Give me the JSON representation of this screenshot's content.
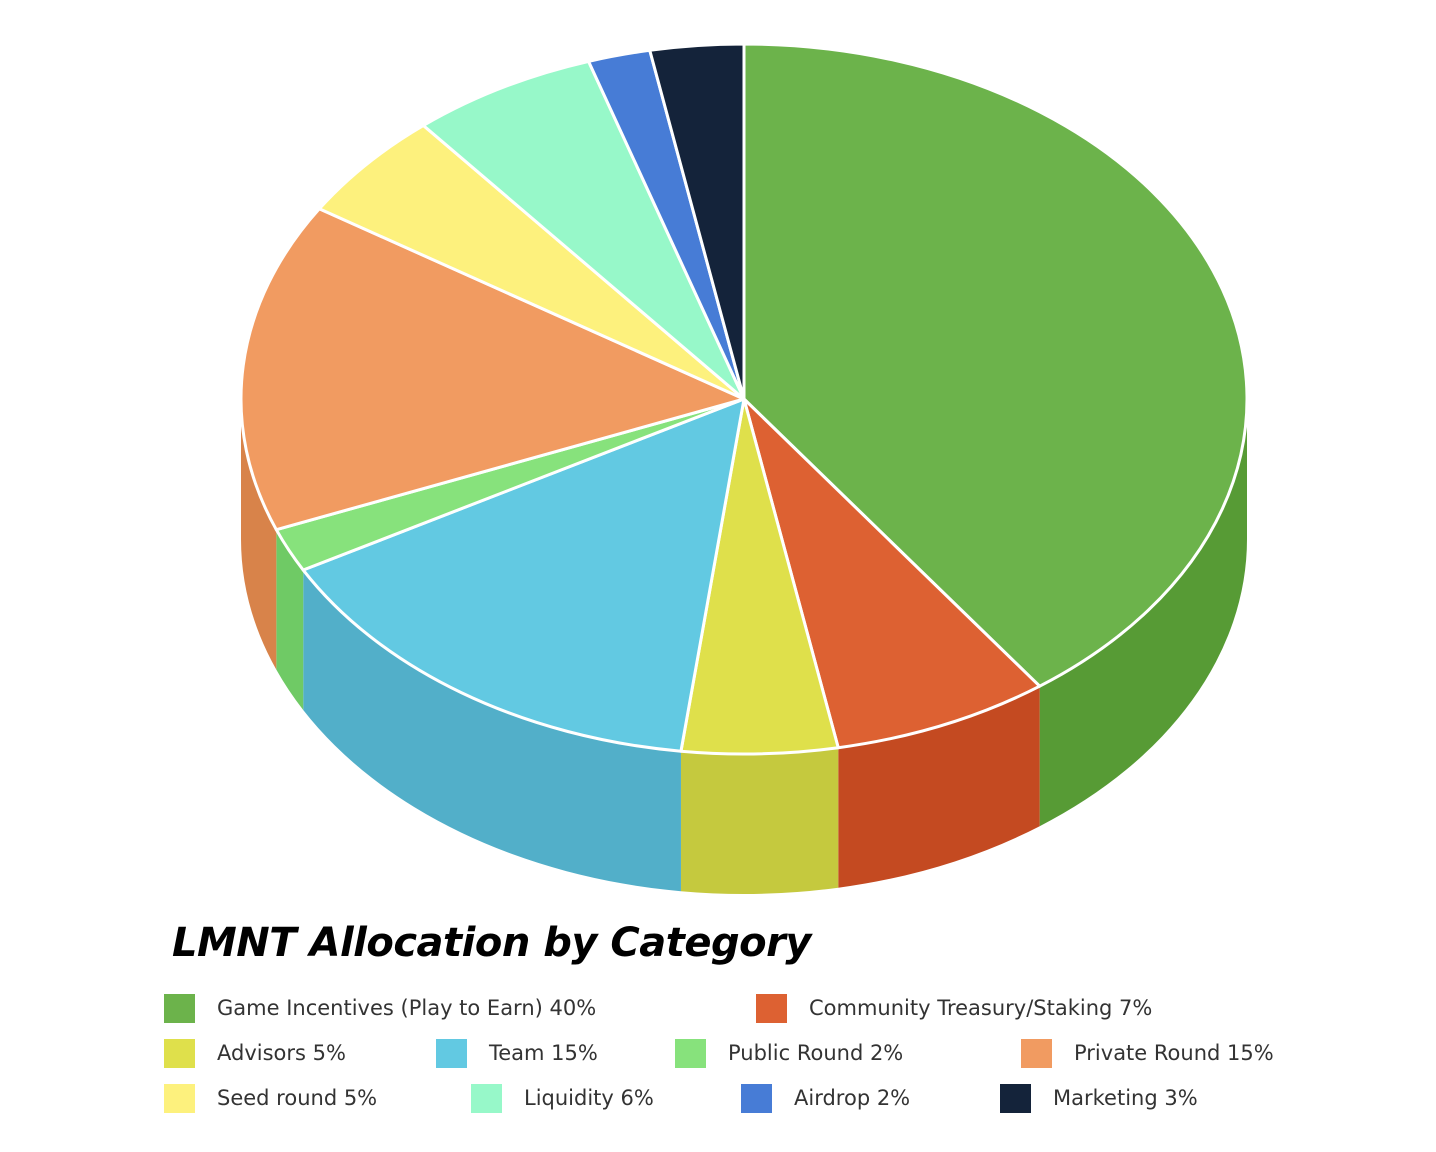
{
  "chart_data": {
    "type": "pie",
    "title": "LMNT Allocation by Category",
    "slices": [
      {
        "name": "Game Incentives (Play to Earn)",
        "label": "Game Incentives (Play to Earn) 40%",
        "value": 40,
        "color": "#6cb34b",
        "side_color": "#579b35"
      },
      {
        "name": "Community Treasury/Staking",
        "label": "Community Treasury/Staking 7%",
        "value": 7,
        "color": "#dd6132",
        "side_color": "#c44a21"
      },
      {
        "name": "Advisors",
        "label": "Advisors 5%",
        "value": 5,
        "color": "#dfe04b",
        "side_color": "#c5c93e"
      },
      {
        "name": "Team",
        "label": "Team 15%",
        "value": 15,
        "color": "#62c9e2",
        "side_color": "#52afc9"
      },
      {
        "name": "Public Round",
        "label": "Public Round 2%",
        "value": 2,
        "color": "#87e27c",
        "side_color": "#6fca65"
      },
      {
        "name": "Private Round",
        "label": "Private Round 15%",
        "value": 15,
        "color": "#f19b61",
        "side_color": "#d8834a"
      },
      {
        "name": "Seed round",
        "label": "Seed round 5%",
        "value": 5,
        "color": "#fdf17d",
        "side_color": "#e3d866"
      },
      {
        "name": "Liquidity",
        "label": "Liquidity 6%",
        "value": 6,
        "color": "#97f8c9",
        "side_color": "#7fdfb1"
      },
      {
        "name": "Airdrop",
        "label": "Airdrop 2%",
        "value": 2,
        "color": "#477cd6",
        "side_color": "#3666b8"
      },
      {
        "name": "Marketing",
        "label": "Marketing 3%",
        "value": 3,
        "color": "#14233a",
        "side_color": "#0c1626"
      }
    ],
    "legend_position": "bottom"
  }
}
